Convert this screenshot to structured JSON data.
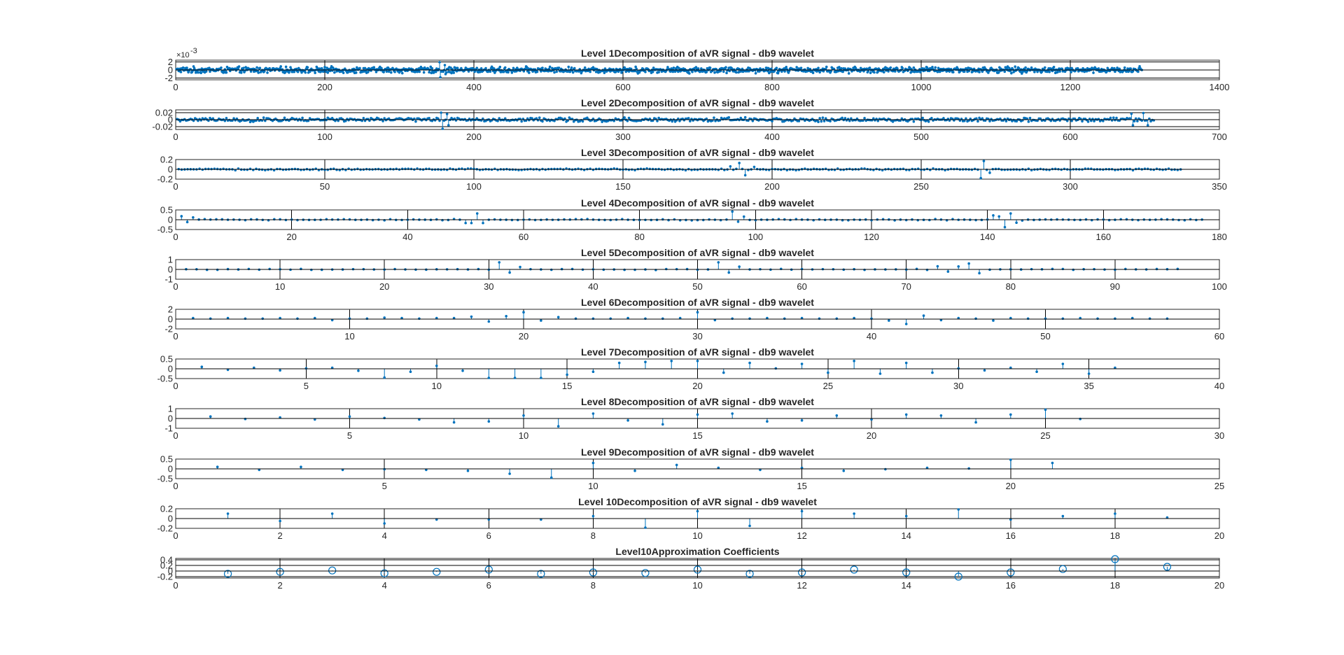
{
  "colors": {
    "series": "#0072BD",
    "axis": "#262626",
    "background": "#FFFFFF"
  },
  "chart_data": [
    {
      "type": "stem",
      "title": "Level 1Decomposition of aVR signal - db9 wavelet",
      "xlim": [
        0,
        1400
      ],
      "xticks": [
        0,
        200,
        400,
        600,
        800,
        1000,
        1200,
        1400
      ],
      "ylim": [
        -0.0024,
        0.0024
      ],
      "yticks": [
        -0.002,
        0,
        0.002
      ],
      "ytick_labels": [
        "-2",
        "0",
        "2"
      ],
      "yexponent": "-3",
      "marker": "dot",
      "grid": true,
      "series_gen": {
        "n": 1296,
        "start": 1,
        "step": 1,
        "amp": 0.0009,
        "spikes": [
          [
            354,
            0.0019
          ],
          [
            355,
            -0.0018
          ],
          [
            361,
            0.0012
          ],
          [
            362,
            -0.001
          ],
          [
            1293,
            0.0009
          ]
        ]
      }
    },
    {
      "type": "stem",
      "title": "Level 2Decomposition of aVR signal - db9 wavelet",
      "xlim": [
        0,
        700
      ],
      "xticks": [
        0,
        100,
        200,
        300,
        400,
        500,
        600,
        700
      ],
      "ylim": [
        -0.028,
        0.028
      ],
      "yticks": [
        -0.02,
        0,
        0.02
      ],
      "ytick_labels": [
        "-0.02",
        "0",
        "0.02"
      ],
      "marker": "dot",
      "grid": true,
      "series_gen": {
        "n": 656,
        "start": 1,
        "step": 1,
        "amp": 0.007,
        "spikes": [
          [
            178,
            0.02
          ],
          [
            179,
            -0.028
          ],
          [
            182,
            0.016
          ],
          [
            183,
            -0.016
          ],
          [
            641,
            0.017
          ],
          [
            642,
            -0.016
          ],
          [
            649,
            0.019
          ],
          [
            652,
            -0.016
          ]
        ]
      }
    },
    {
      "type": "stem",
      "title": "Level 3Decomposition of aVR signal - db9 wavelet",
      "xlim": [
        0,
        350
      ],
      "xticks": [
        0,
        50,
        100,
        150,
        200,
        250,
        300,
        350
      ],
      "ylim": [
        -0.2,
        0.2
      ],
      "yticks": [
        -0.2,
        0,
        0.2
      ],
      "ytick_labels": [
        "-0.2",
        "0",
        "0.2"
      ],
      "marker": "dot",
      "grid": true,
      "series_gen": {
        "n": 337,
        "start": 1,
        "step": 1,
        "amp": 0.02,
        "spikes": [
          [
            186,
            0.06
          ],
          [
            189,
            0.13
          ],
          [
            191,
            -0.12
          ],
          [
            194,
            0.05
          ],
          [
            270,
            -0.18
          ],
          [
            271,
            0.17
          ],
          [
            273,
            -0.07
          ]
        ]
      }
    },
    {
      "type": "stem",
      "title": "Level 4Decomposition of aVR signal - db9 wavelet",
      "xlim": [
        0,
        180
      ],
      "xticks": [
        0,
        20,
        40,
        60,
        80,
        100,
        120,
        140,
        160,
        180
      ],
      "ylim": [
        -0.5,
        0.5
      ],
      "yticks": [
        -0.5,
        0,
        0.5
      ],
      "ytick_labels": [
        "-0.5",
        "0",
        "0.5"
      ],
      "marker": "dot",
      "grid": true,
      "series_gen": {
        "n": 177,
        "start": 1,
        "step": 1,
        "amp": 0.04,
        "spikes": [
          [
            1,
            0.18
          ],
          [
            2,
            -0.12
          ],
          [
            3,
            0.12
          ],
          [
            50,
            -0.17
          ],
          [
            51,
            -0.17
          ],
          [
            52,
            0.32
          ],
          [
            53,
            -0.17
          ],
          [
            96,
            0.42
          ],
          [
            97,
            -0.1
          ],
          [
            98,
            0.16
          ],
          [
            141,
            0.22
          ],
          [
            142,
            0.17
          ],
          [
            143,
            -0.38
          ],
          [
            144,
            0.32
          ],
          [
            145,
            -0.15
          ]
        ]
      }
    },
    {
      "type": "stem",
      "title": "Level 5Decomposition of aVR signal - db9 wavelet",
      "xlim": [
        0,
        100
      ],
      "xticks": [
        0,
        10,
        20,
        30,
        40,
        50,
        60,
        70,
        80,
        90,
        100
      ],
      "ylim": [
        -1,
        1
      ],
      "yticks": [
        -1,
        0,
        1
      ],
      "ytick_labels": [
        "-1",
        "0",
        "1"
      ],
      "marker": "dot",
      "grid": true,
      "series_gen": {
        "n": 96,
        "start": 1,
        "step": 1,
        "amp": 0.07,
        "spikes": [
          [
            31,
            0.72
          ],
          [
            32,
            -0.32
          ],
          [
            33,
            0.25
          ],
          [
            52,
            0.72
          ],
          [
            53,
            -0.32
          ],
          [
            54,
            0.28
          ],
          [
            73,
            0.32
          ],
          [
            74,
            -0.22
          ],
          [
            75,
            0.3
          ],
          [
            76,
            0.6
          ],
          [
            77,
            -0.38
          ]
        ]
      }
    },
    {
      "type": "stem",
      "title": "Level 6Decomposition of aVR signal - db9 wavelet",
      "xlim": [
        0,
        60
      ],
      "xticks": [
        0,
        10,
        20,
        30,
        40,
        50,
        60
      ],
      "ylim": [
        -2,
        2
      ],
      "yticks": [
        -2,
        0,
        2
      ],
      "ytick_labels": [
        "-2",
        "0",
        "2"
      ],
      "marker": "dot",
      "grid": true,
      "x": [
        1,
        2,
        3,
        4,
        5,
        6,
        7,
        8,
        9,
        10,
        11,
        12,
        13,
        14,
        15,
        16,
        17,
        18,
        19,
        20,
        21,
        22,
        23,
        24,
        25,
        26,
        27,
        28,
        29,
        30,
        31,
        32,
        33,
        34,
        35,
        36,
        37,
        38,
        39,
        40,
        41,
        42,
        43,
        44,
        45,
        46,
        47,
        48,
        49,
        50,
        51,
        52,
        53,
        54,
        55,
        56,
        57
      ],
      "y": [
        0.2,
        0.1,
        0.2,
        0.1,
        0.1,
        0.2,
        0.1,
        0.2,
        -0.2,
        0.1,
        0.1,
        0.3,
        0.2,
        0.1,
        0.2,
        0.2,
        0.5,
        -0.5,
        0.6,
        1.4,
        -0.3,
        0.4,
        0.1,
        0.1,
        0.1,
        0.2,
        0.1,
        0.1,
        0.2,
        1.4,
        -0.2,
        0.1,
        0.1,
        0.2,
        0.1,
        0.2,
        0.1,
        0.1,
        0.2,
        0.1,
        -0.3,
        -1.0,
        0.7,
        -0.2,
        0.2,
        0.1,
        -0.3,
        0.2,
        0.1,
        0.1,
        0.1,
        0.2,
        0.1,
        0.1,
        0.2,
        0.1,
        0.1
      ]
    },
    {
      "type": "stem",
      "title": "Level 7Decomposition of aVR signal - db9 wavelet",
      "xlim": [
        0,
        40
      ],
      "xticks": [
        0,
        5,
        10,
        15,
        20,
        25,
        30,
        35,
        40
      ],
      "ylim": [
        -0.5,
        0.5
      ],
      "yticks": [
        -0.5,
        0,
        0.5
      ],
      "ytick_labels": [
        "-0.5",
        "0",
        "0.5"
      ],
      "marker": "dot",
      "grid": true,
      "x": [
        1,
        2,
        3,
        4,
        5,
        6,
        7,
        8,
        9,
        10,
        11,
        12,
        13,
        14,
        15,
        16,
        17,
        18,
        19,
        20,
        21,
        22,
        23,
        24,
        25,
        26,
        27,
        28,
        29,
        30,
        31,
        32,
        33,
        34,
        35,
        36
      ],
      "y": [
        0.1,
        -0.05,
        0.05,
        -0.08,
        0.02,
        0.05,
        -0.1,
        -0.45,
        -0.15,
        0.15,
        -0.1,
        -0.5,
        -0.5,
        -0.5,
        -0.3,
        -0.15,
        0.3,
        0.35,
        0.4,
        0.4,
        -0.2,
        0.3,
        0.02,
        0.25,
        -0.2,
        0.4,
        -0.25,
        0.3,
        -0.2,
        0.02,
        -0.08,
        0.05,
        -0.15,
        0.25,
        -0.25,
        0.05
      ]
    },
    {
      "type": "stem",
      "title": "Level 8Decomposition of aVR signal - db9 wavelet",
      "xlim": [
        0,
        30
      ],
      "xticks": [
        0,
        5,
        10,
        15,
        20,
        25,
        30
      ],
      "ylim": [
        -1,
        1
      ],
      "yticks": [
        -1,
        0,
        1
      ],
      "ytick_labels": [
        "-1",
        "0",
        "1"
      ],
      "marker": "dot",
      "grid": true,
      "x": [
        1,
        2,
        3,
        4,
        5,
        6,
        7,
        8,
        9,
        10,
        11,
        12,
        13,
        14,
        15,
        16,
        17,
        18,
        19,
        20,
        21,
        22,
        23,
        24,
        25,
        26
      ],
      "y": [
        0.2,
        -0.05,
        0.1,
        -0.1,
        0.2,
        0.05,
        -0.1,
        -0.4,
        -0.3,
        0.3,
        -0.8,
        0.5,
        -0.2,
        -0.6,
        0.4,
        0.5,
        -0.3,
        -0.2,
        0.3,
        -0.1,
        0.4,
        0.3,
        -0.4,
        0.4,
        0.9,
        -0.05
      ]
    },
    {
      "type": "stem",
      "title": "Level 9Decomposition of aVR signal - db9 wavelet",
      "xlim": [
        0,
        25
      ],
      "xticks": [
        0,
        5,
        10,
        15,
        20,
        25
      ],
      "ylim": [
        -0.5,
        0.5
      ],
      "yticks": [
        -0.5,
        0,
        0.5
      ],
      "ytick_labels": [
        "-0.5",
        "0",
        "0.5"
      ],
      "marker": "dot",
      "grid": true,
      "x": [
        1,
        2,
        3,
        4,
        5,
        6,
        7,
        8,
        9,
        10,
        11,
        12,
        13,
        14,
        15,
        16,
        17,
        18,
        19,
        20,
        21
      ],
      "y": [
        0.1,
        -0.05,
        0.1,
        -0.05,
        -0.02,
        -0.05,
        -0.1,
        -0.25,
        -0.45,
        0.3,
        -0.1,
        0.2,
        0.05,
        -0.05,
        0.05,
        -0.1,
        -0.02,
        0.05,
        0.02,
        0.5,
        0.3
      ]
    },
    {
      "type": "stem",
      "title": "Level 10Decomposition of aVR signal - db9 wavelet",
      "xlim": [
        0,
        20
      ],
      "xticks": [
        0,
        2,
        4,
        6,
        8,
        10,
        12,
        14,
        16,
        18,
        20
      ],
      "ylim": [
        -0.2,
        0.2
      ],
      "yticks": [
        -0.2,
        0,
        0.2
      ],
      "ytick_labels": [
        "-0.2",
        "0",
        "0.2"
      ],
      "marker": "dot",
      "grid": true,
      "x": [
        1,
        2,
        3,
        4,
        5,
        6,
        7,
        8,
        9,
        10,
        11,
        12,
        13,
        14,
        15,
        16,
        17,
        18,
        19
      ],
      "y": [
        0.1,
        -0.05,
        0.1,
        -0.1,
        -0.02,
        -0.02,
        -0.02,
        0.05,
        -0.2,
        0.15,
        -0.15,
        0.15,
        0.1,
        0.05,
        0.2,
        -0.02,
        0.05,
        0.1,
        0.02
      ]
    },
    {
      "type": "stem",
      "title": "Level10Approximation Coefficients",
      "xlim": [
        0,
        20
      ],
      "xticks": [
        0,
        2,
        4,
        6,
        8,
        10,
        12,
        14,
        16,
        18,
        20
      ],
      "ylim": [
        -0.25,
        0.45
      ],
      "yticks": [
        -0.2,
        0,
        0.2,
        0.4
      ],
      "ytick_labels": [
        "-0.2",
        "0",
        "0.2",
        "0.4"
      ],
      "marker": "circle",
      "grid": true,
      "x": [
        1,
        2,
        3,
        4,
        5,
        6,
        7,
        8,
        9,
        10,
        11,
        12,
        13,
        14,
        15,
        16,
        17,
        18,
        19
      ],
      "y": [
        -0.1,
        -0.03,
        0.02,
        -0.08,
        -0.03,
        0.05,
        -0.1,
        -0.05,
        -0.07,
        0.05,
        -0.1,
        -0.05,
        0.05,
        -0.05,
        -0.2,
        -0.05,
        0.07,
        0.45,
        0.15
      ]
    }
  ]
}
